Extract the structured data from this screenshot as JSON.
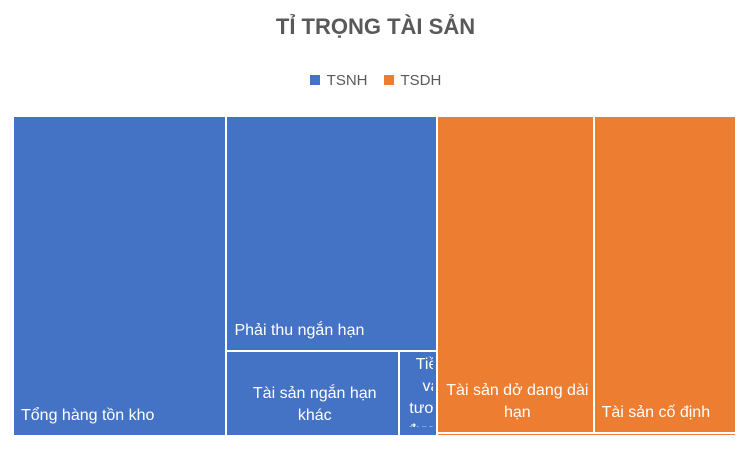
{
  "chart_data": {
    "type": "treemap",
    "title": "TỈ TRỌNG TÀI SẢN",
    "series": [
      {
        "name": "TSNH",
        "color": "#4472c4",
        "categories": [
          "Tổng hàng tồn kho",
          "Phải thu ngắn hạn",
          "Tài sản ngắn hạn khác",
          "Tiền và tương đương tiền"
        ],
        "values": [
          67.5,
          48.9,
          14.5,
          3.2
        ]
      },
      {
        "name": "TSDH",
        "color": "#ed7d31",
        "categories": [
          "Tài sản dở dang dài hạn",
          "Tài sản cố định",
          null
        ],
        "values": [
          49.0,
          44.6,
          0.9
        ]
      }
    ]
  }
}
